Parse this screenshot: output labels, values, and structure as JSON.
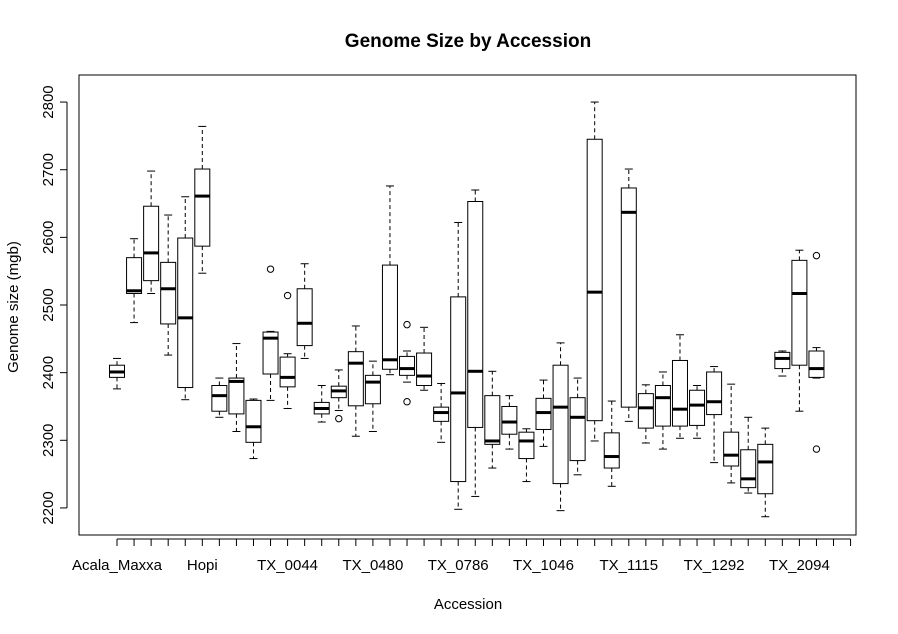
{
  "chart_data": {
    "type": "boxplot",
    "title": "Genome Size by Accession",
    "xlabel": "Accession",
    "ylabel": "Genome size (mgb)",
    "ylim": [
      2160,
      2840
    ],
    "y_ticks": [
      2200,
      2300,
      2400,
      2500,
      2600,
      2700,
      2800
    ],
    "x_tick_labels": [
      {
        "index": 0,
        "label": "Acala_Maxxa"
      },
      {
        "index": 5,
        "label": "Hopi"
      },
      {
        "index": 10,
        "label": "TX_0044"
      },
      {
        "index": 15,
        "label": "TX_0480"
      },
      {
        "index": 20,
        "label": "TX_0786"
      },
      {
        "index": 25,
        "label": "TX_1046"
      },
      {
        "index": 30,
        "label": "TX_1115"
      },
      {
        "index": 35,
        "label": "TX_1292"
      },
      {
        "index": 40,
        "label": "TX_2094"
      }
    ],
    "grid": false,
    "boxes": [
      {
        "min": 2376,
        "q1": 2393,
        "median": 2401,
        "q3": 2411,
        "max": 2421,
        "outliers": []
      },
      {
        "min": 2474,
        "q1": 2517,
        "median": 2521,
        "q3": 2570,
        "max": 2598,
        "outliers": []
      },
      {
        "min": 2517,
        "q1": 2536,
        "median": 2577,
        "q3": 2646,
        "max": 2698,
        "outliers": []
      },
      {
        "min": 2426,
        "q1": 2472,
        "median": 2524,
        "q3": 2563,
        "max": 2633,
        "outliers": []
      },
      {
        "min": 2360,
        "q1": 2378,
        "median": 2481,
        "q3": 2599,
        "max": 2660,
        "outliers": []
      },
      {
        "min": 2547,
        "q1": 2587,
        "median": 2661,
        "q3": 2701,
        "max": 2764,
        "outliers": []
      },
      {
        "min": 2334,
        "q1": 2343,
        "median": 2366,
        "q3": 2381,
        "max": 2392,
        "outliers": []
      },
      {
        "min": 2313,
        "q1": 2339,
        "median": 2387,
        "q3": 2392,
        "max": 2443,
        "outliers": []
      },
      {
        "min": 2273,
        "q1": 2297,
        "median": 2320,
        "q3": 2359,
        "max": 2361,
        "outliers": []
      },
      {
        "min": 2359,
        "q1": 2398,
        "median": 2451,
        "q3": 2460,
        "max": 2461,
        "outliers": [
          2553
        ]
      },
      {
        "min": 2347,
        "q1": 2379,
        "median": 2393,
        "q3": 2423,
        "max": 2428,
        "outliers": [
          2514
        ]
      },
      {
        "min": 2421,
        "q1": 2440,
        "median": 2473,
        "q3": 2524,
        "max": 2561,
        "outliers": []
      },
      {
        "min": 2327,
        "q1": 2339,
        "median": 2347,
        "q3": 2356,
        "max": 2381,
        "outliers": []
      },
      {
        "min": 2344,
        "q1": 2363,
        "median": 2373,
        "q3": 2380,
        "max": 2404,
        "outliers": [
          2332
        ]
      },
      {
        "min": 2306,
        "q1": 2351,
        "median": 2414,
        "q3": 2431,
        "max": 2469,
        "outliers": []
      },
      {
        "min": 2313,
        "q1": 2354,
        "median": 2386,
        "q3": 2396,
        "max": 2417,
        "outliers": []
      },
      {
        "min": 2397,
        "q1": 2405,
        "median": 2419,
        "q3": 2559,
        "max": 2676,
        "outliers": []
      },
      {
        "min": 2386,
        "q1": 2396,
        "median": 2406,
        "q3": 2424,
        "max": 2432,
        "outliers": [
          2471,
          2357
        ]
      },
      {
        "min": 2374,
        "q1": 2381,
        "median": 2395,
        "q3": 2429,
        "max": 2467,
        "outliers": []
      },
      {
        "min": 2297,
        "q1": 2328,
        "median": 2341,
        "q3": 2349,
        "max": 2384,
        "outliers": []
      },
      {
        "min": 2198,
        "q1": 2239,
        "median": 2370,
        "q3": 2512,
        "max": 2622,
        "outliers": []
      },
      {
        "min": 2217,
        "q1": 2319,
        "median": 2402,
        "q3": 2653,
        "max": 2670,
        "outliers": []
      },
      {
        "min": 2259,
        "q1": 2294,
        "median": 2299,
        "q3": 2366,
        "max": 2402,
        "outliers": []
      },
      {
        "min": 2287,
        "q1": 2309,
        "median": 2327,
        "q3": 2350,
        "max": 2366,
        "outliers": []
      },
      {
        "min": 2239,
        "q1": 2273,
        "median": 2299,
        "q3": 2312,
        "max": 2317,
        "outliers": []
      },
      {
        "min": 2291,
        "q1": 2316,
        "median": 2341,
        "q3": 2362,
        "max": 2389,
        "outliers": []
      },
      {
        "min": 2196,
        "q1": 2236,
        "median": 2349,
        "q3": 2411,
        "max": 2444,
        "outliers": []
      },
      {
        "min": 2249,
        "q1": 2270,
        "median": 2334,
        "q3": 2363,
        "max": 2392,
        "outliers": []
      },
      {
        "min": 2299,
        "q1": 2329,
        "median": 2519,
        "q3": 2745,
        "max": 2800,
        "outliers": []
      },
      {
        "min": 2232,
        "q1": 2259,
        "median": 2276,
        "q3": 2311,
        "max": 2358,
        "outliers": []
      },
      {
        "min": 2328,
        "q1": 2349,
        "median": 2637,
        "q3": 2673,
        "max": 2701,
        "outliers": []
      },
      {
        "min": 2296,
        "q1": 2318,
        "median": 2348,
        "q3": 2369,
        "max": 2382,
        "outliers": []
      },
      {
        "min": 2287,
        "q1": 2321,
        "median": 2363,
        "q3": 2381,
        "max": 2401,
        "outliers": []
      },
      {
        "min": 2303,
        "q1": 2321,
        "median": 2346,
        "q3": 2418,
        "max": 2456,
        "outliers": []
      },
      {
        "min": 2303,
        "q1": 2322,
        "median": 2352,
        "q3": 2374,
        "max": 2381,
        "outliers": []
      },
      {
        "min": 2267,
        "q1": 2338,
        "median": 2357,
        "q3": 2401,
        "max": 2409,
        "outliers": []
      },
      {
        "min": 2237,
        "q1": 2262,
        "median": 2278,
        "q3": 2312,
        "max": 2383,
        "outliers": []
      },
      {
        "min": 2222,
        "q1": 2230,
        "median": 2243,
        "q3": 2286,
        "max": 2334,
        "outliers": []
      },
      {
        "min": 2187,
        "q1": 2221,
        "median": 2268,
        "q3": 2294,
        "max": 2318,
        "outliers": []
      },
      {
        "min": 2395,
        "q1": 2406,
        "median": 2421,
        "q3": 2430,
        "max": 2432,
        "outliers": []
      },
      {
        "min": 2343,
        "q1": 2411,
        "median": 2517,
        "q3": 2566,
        "max": 2581,
        "outliers": []
      },
      {
        "min": 2392,
        "q1": 2393,
        "median": 2406,
        "q3": 2432,
        "max": 2437,
        "outliers": [
          2573,
          2287
        ]
      },
      {
        "min": null,
        "q1": null,
        "median": null,
        "q3": null,
        "max": null,
        "outliers": []
      },
      {
        "min": null,
        "q1": null,
        "median": null,
        "q3": null,
        "max": null,
        "outliers": []
      }
    ]
  }
}
